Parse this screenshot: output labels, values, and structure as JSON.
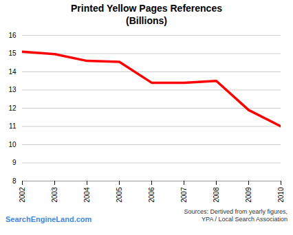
{
  "chart_data": {
    "type": "line",
    "title": "Printed Yellow Pages References\n(Billions)",
    "x": [
      2002,
      2003,
      2004,
      2005,
      2006,
      2007,
      2008,
      2009,
      2010
    ],
    "values": [
      15.1,
      14.97,
      14.6,
      14.55,
      13.4,
      13.4,
      13.5,
      11.9,
      11.0
    ],
    "color": "#ff0000",
    "xlim": [
      2002,
      2010
    ],
    "xticks": [
      2002,
      2003,
      2004,
      2005,
      2006,
      2007,
      2008,
      2009,
      2010
    ],
    "ylim": [
      8,
      16
    ],
    "yticks": [
      8,
      9,
      10,
      11,
      12,
      13,
      14,
      15,
      16
    ],
    "grid": true,
    "annotations": [
      "Sources: Dertived from yearly figures,\nYPA / Local Search Association",
      "SearchEngineLand.com"
    ]
  }
}
